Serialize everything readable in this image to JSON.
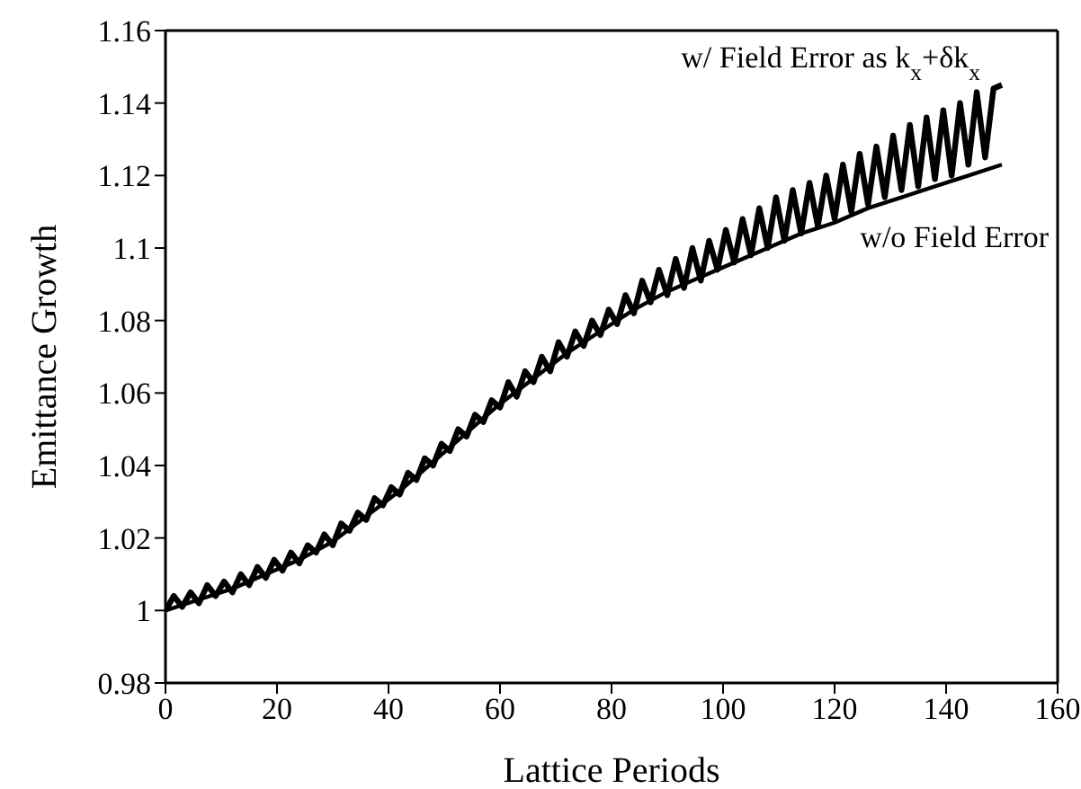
{
  "chart_data": {
    "type": "line",
    "xlabel": "Lattice Periods",
    "ylabel": "Emittance Growth",
    "xlim": [
      0,
      160
    ],
    "xticks": [
      0,
      20,
      40,
      60,
      80,
      100,
      120,
      140,
      160
    ],
    "ylim": [
      0.98,
      1.16
    ],
    "yticks": [
      0.98,
      1,
      1.02,
      1.04,
      1.06,
      1.08,
      1.1,
      1.12,
      1.14,
      1.16
    ],
    "marker": "none",
    "line_style": "solid",
    "series": [
      {
        "name": "w/  Field Error as k$_{x}$+δk$_{x}$",
        "color": "#000000",
        "x": [
          0,
          1.5,
          3,
          4.5,
          6,
          7.5,
          9,
          10.5,
          12,
          13.5,
          15,
          16.5,
          18,
          19.5,
          21,
          22.5,
          24,
          25.5,
          27,
          28.5,
          30,
          31.5,
          33,
          34.5,
          36,
          37.5,
          39,
          40.5,
          42,
          43.5,
          45,
          46.5,
          48,
          49.5,
          51,
          52.5,
          54,
          55.5,
          57,
          58.5,
          60,
          61.5,
          63,
          64.5,
          66,
          67.5,
          69,
          70.5,
          72,
          73.5,
          75,
          76.5,
          78,
          79.5,
          81,
          82.5,
          84,
          85.5,
          87,
          88.5,
          90,
          91.5,
          93,
          94.5,
          96,
          97.5,
          99,
          100.5,
          102,
          103.5,
          105,
          106.5,
          108,
          109.5,
          111,
          112.5,
          114,
          115.5,
          117,
          118.5,
          120,
          121.5,
          123,
          124.5,
          126,
          127.5,
          129,
          130.5,
          132,
          133.5,
          135,
          136.5,
          138,
          139.5,
          141,
          142.5,
          144,
          145.5,
          147,
          148.5,
          150
        ],
        "values": [
          1.0,
          1.004,
          1.001,
          1.005,
          1.002,
          1.007,
          1.004,
          1.008,
          1.005,
          1.01,
          1.007,
          1.012,
          1.009,
          1.014,
          1.011,
          1.016,
          1.013,
          1.018,
          1.016,
          1.021,
          1.018,
          1.024,
          1.022,
          1.027,
          1.025,
          1.031,
          1.029,
          1.034,
          1.032,
          1.038,
          1.036,
          1.042,
          1.04,
          1.046,
          1.044,
          1.05,
          1.048,
          1.054,
          1.052,
          1.058,
          1.056,
          1.063,
          1.059,
          1.066,
          1.063,
          1.07,
          1.066,
          1.074,
          1.07,
          1.077,
          1.073,
          1.08,
          1.076,
          1.083,
          1.079,
          1.087,
          1.082,
          1.091,
          1.085,
          1.094,
          1.087,
          1.097,
          1.089,
          1.1,
          1.091,
          1.102,
          1.094,
          1.105,
          1.096,
          1.108,
          1.098,
          1.111,
          1.1,
          1.114,
          1.102,
          1.116,
          1.104,
          1.118,
          1.106,
          1.12,
          1.108,
          1.123,
          1.11,
          1.126,
          1.112,
          1.128,
          1.114,
          1.131,
          1.116,
          1.134,
          1.117,
          1.136,
          1.119,
          1.138,
          1.12,
          1.14,
          1.123,
          1.143,
          1.125,
          1.144,
          1.145
        ]
      },
      {
        "name": "w/o Field Error",
        "color": "#000000",
        "x": [
          0,
          6,
          12,
          18,
          24,
          30,
          36,
          42,
          48,
          54,
          60,
          66,
          72,
          78,
          84,
          90,
          96,
          102,
          108,
          114,
          120,
          126,
          132,
          138,
          144,
          150
        ],
        "values": [
          1.0,
          1.003,
          1.006,
          1.01,
          1.014,
          1.019,
          1.026,
          1.033,
          1.041,
          1.049,
          1.057,
          1.064,
          1.071,
          1.077,
          1.083,
          1.088,
          1.092,
          1.096,
          1.1,
          1.104,
          1.107,
          1.111,
          1.114,
          1.117,
          1.12,
          1.123
        ]
      }
    ]
  }
}
